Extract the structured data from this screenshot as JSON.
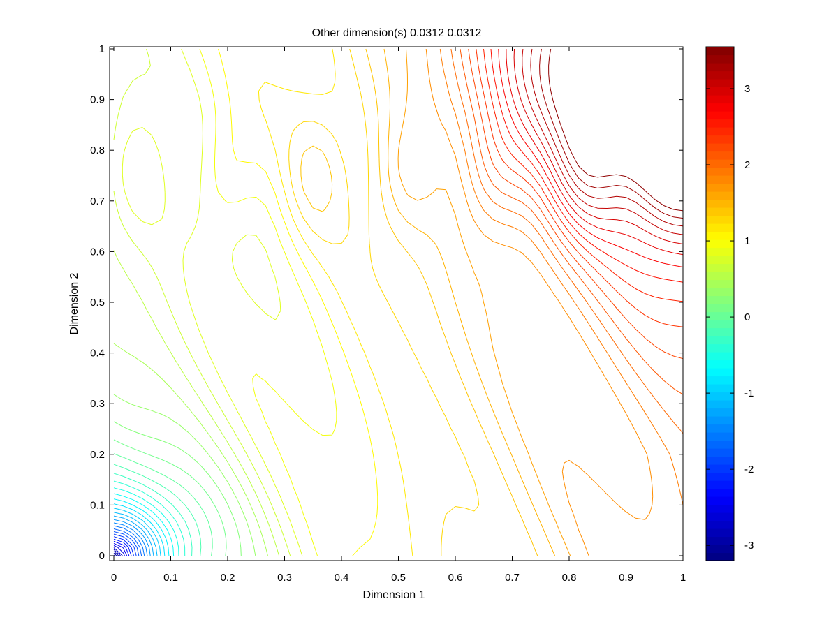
{
  "chart_data": {
    "type": "contour",
    "title": "Other dimension(s) 0.0312 0.0312",
    "xlabel": "Dimension 1",
    "ylabel": "Dimension 2",
    "xlim": [
      0,
      1
    ],
    "ylim": [
      0,
      1
    ],
    "xticks": [
      "0",
      "0.1",
      "0.2",
      "0.3",
      "0.4",
      "0.5",
      "0.6",
      "0.7",
      "0.8",
      "0.9",
      "1"
    ],
    "yticks": [
      "0",
      "0.1",
      "0.2",
      "0.3",
      "0.4",
      "0.5",
      "0.6",
      "0.7",
      "0.8",
      "0.9",
      "1"
    ],
    "grid": false,
    "colormap": "jet",
    "colorbar": {
      "range": [
        -3.2,
        3.55
      ],
      "ticks": [
        "-3",
        "-2",
        "-1",
        "0",
        "1",
        "2",
        "3"
      ]
    },
    "description_values": {
      "min_corner": "bottom-left (≈ -3.2)",
      "max_corner": "top-right (≈ 3.5)"
    }
  }
}
